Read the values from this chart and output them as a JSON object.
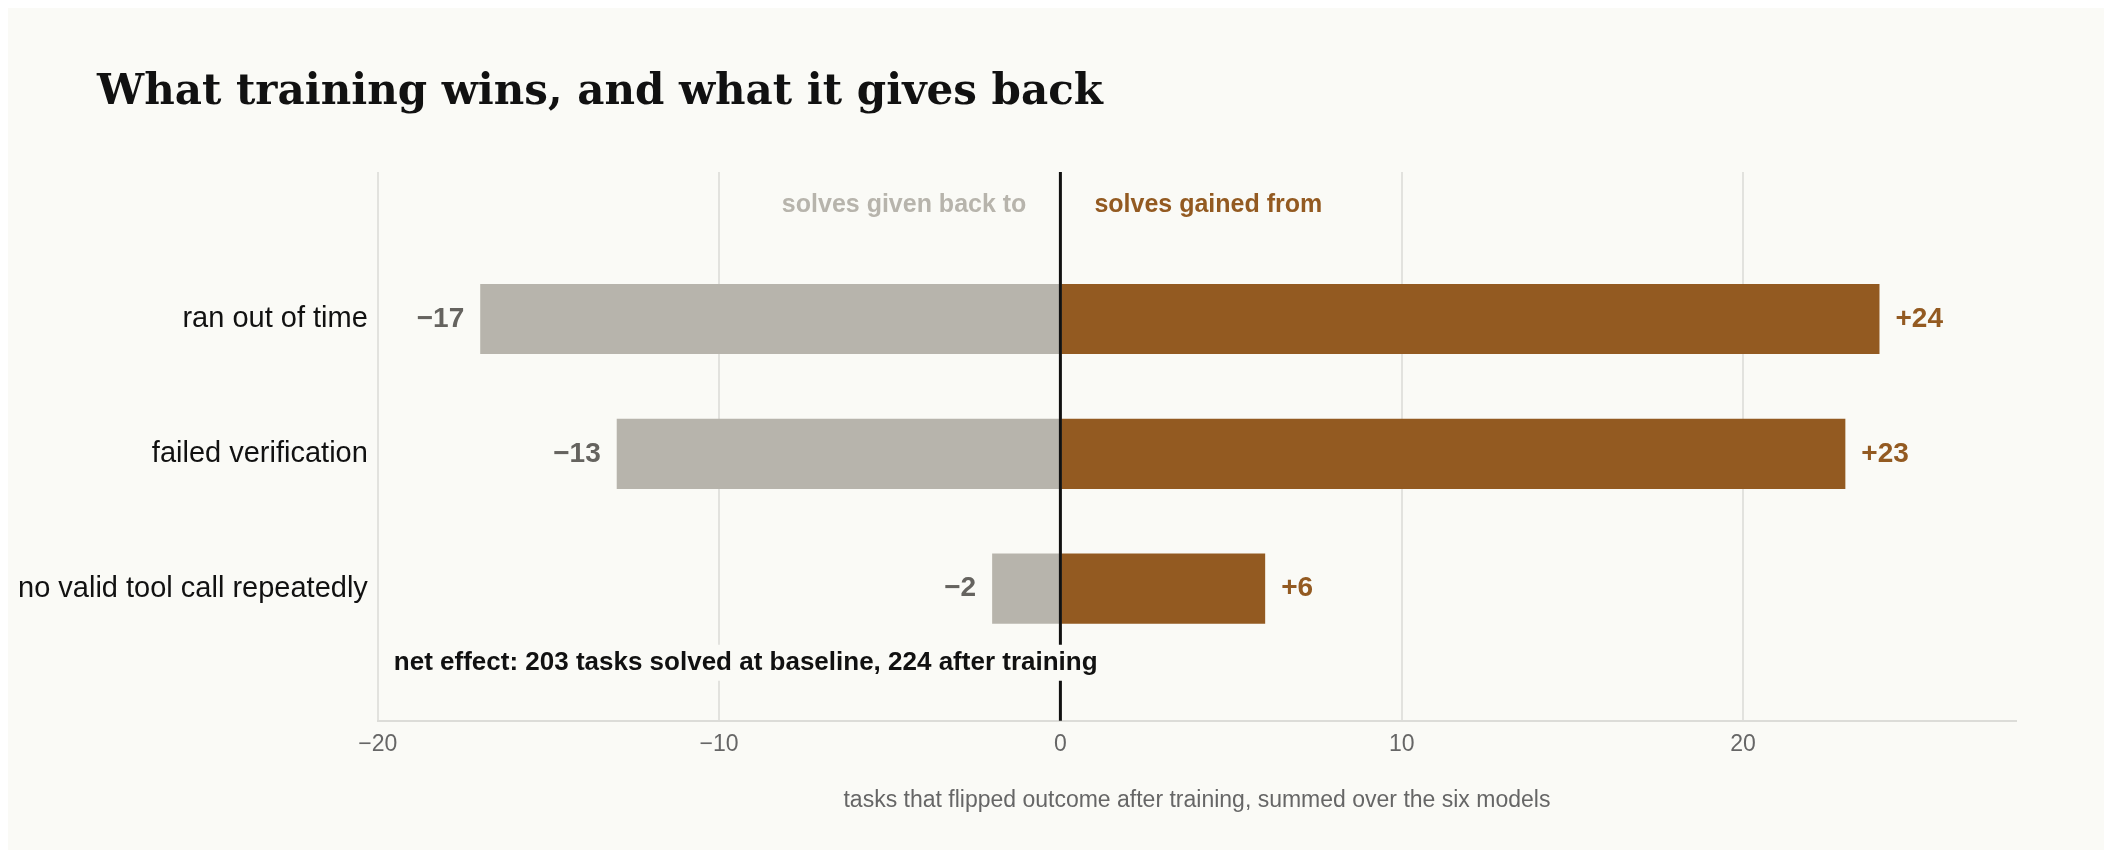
{
  "chart_data": {
    "type": "bar",
    "orientation": "horizontal",
    "stacked": true,
    "title": "What training wins, and what it gives back",
    "xlabel": "tasks that flipped outcome after training, summed over the six models",
    "categories": [
      "ran out of time",
      "failed verification",
      "no valid tool call repeatedly"
    ],
    "series": [
      {
        "name": "solves given back to",
        "color": "#b7b4ac",
        "values": [
          -17,
          -13,
          -2
        ],
        "value_labels": [
          "−17",
          "−13",
          "−2"
        ]
      },
      {
        "name": "solves gained from",
        "color": "#935a21",
        "values": [
          24,
          23,
          6
        ],
        "value_labels": [
          "+24",
          "+23",
          "+6"
        ]
      }
    ],
    "xlim": [
      -20,
      28
    ],
    "xticks": [
      {
        "value": -20,
        "label": "−20"
      },
      {
        "value": -10,
        "label": "−10"
      },
      0,
      10,
      20
    ],
    "grid": "x",
    "legend": false,
    "ref_lines": [
      {
        "axis": "x",
        "value": 0,
        "color": "#111111"
      }
    ],
    "annotations": [
      "net effect: 203 tasks solved at baseline, 224 after training"
    ]
  }
}
